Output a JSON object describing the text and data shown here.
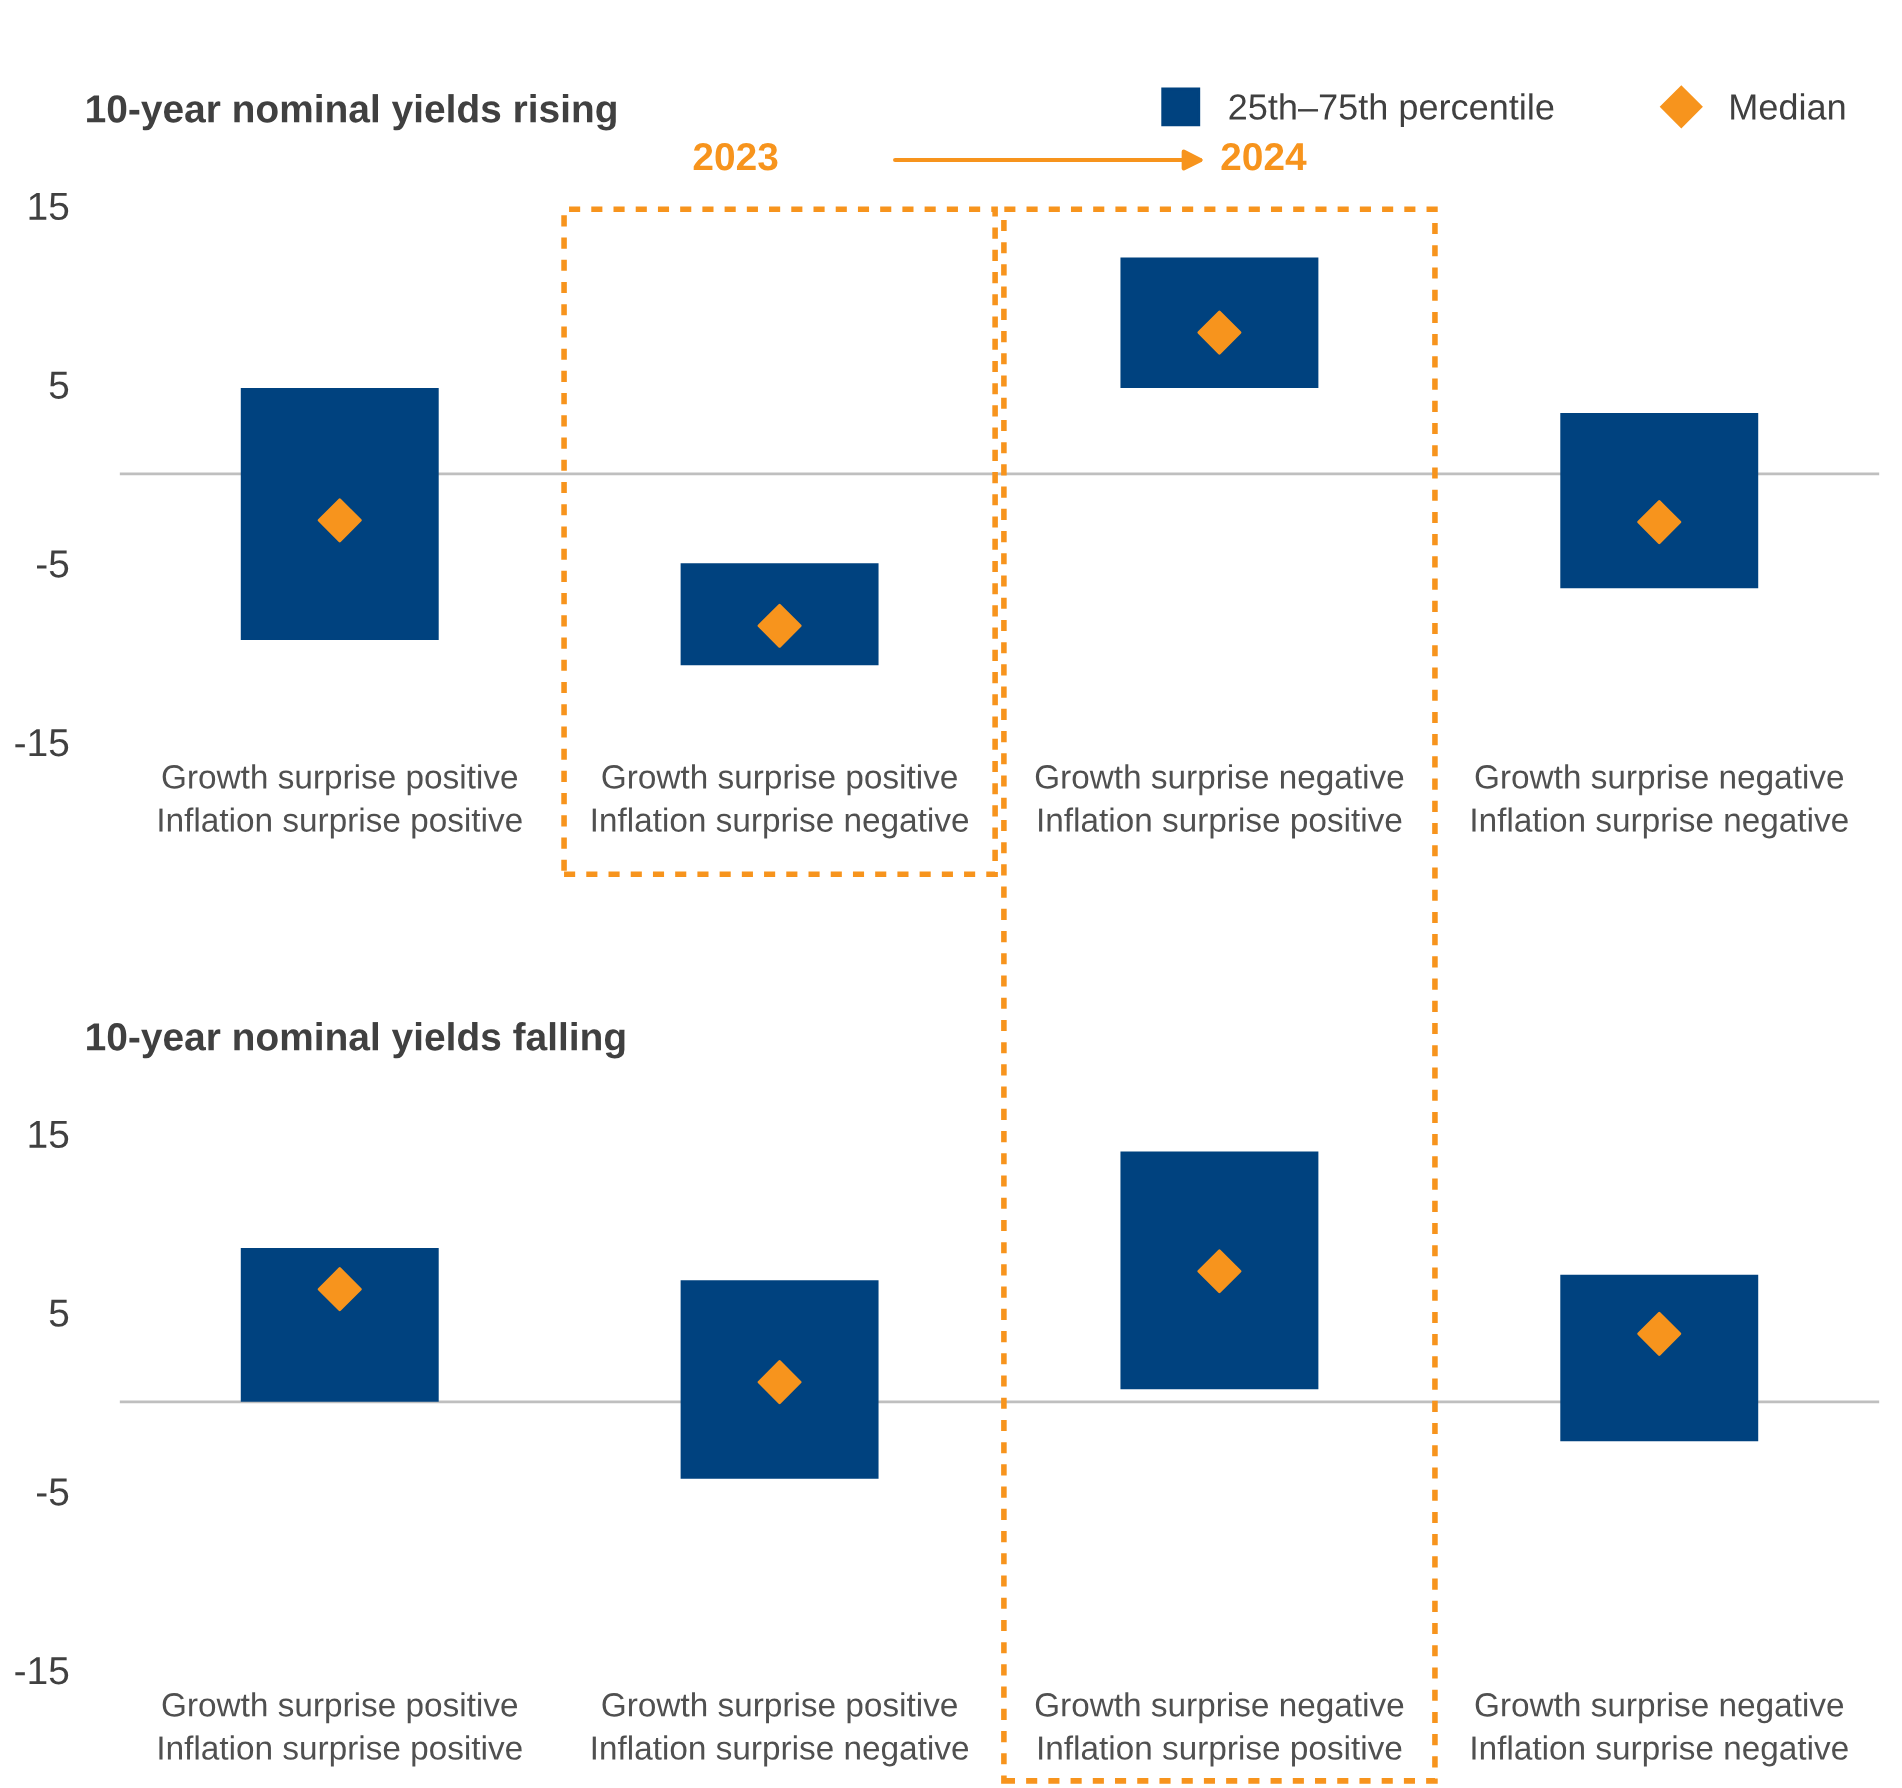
{
  "chart_data": [
    {
      "type": "bar",
      "title": "10-year nominal yields rising",
      "categories": [
        "Growth surprise positive\nInflation surprise positive",
        "Growth surprise positive\nInflation surprise negative",
        "Growth surprise negative\nInflation surprise positive",
        "Growth surprise negative\nInflation surprise negative"
      ],
      "series": [
        {
          "name": "25th–75th percentile",
          "color": "#00427f",
          "base": [
            -9.3,
            -10.7,
            4.8,
            -6.4
          ],
          "values": [
            14.1,
            5.7,
            7.3,
            9.8
          ]
        },
        {
          "name": "Median",
          "type": "scatter",
          "color": "#f7941d",
          "x": [
            "Growth surprise positive\nInflation surprise positive",
            "Growth surprise positive\nInflation surprise negative",
            "Growth surprise negative\nInflation surprise positive",
            "Growth surprise negative\nInflation surprise negative"
          ],
          "values": [
            -2.6,
            -8.5,
            7.9,
            -2.7
          ]
        }
      ],
      "marker": "diamond",
      "ylim": [
        -15,
        15
      ],
      "yticks": [
        -15,
        -5,
        5,
        15
      ],
      "grid": false,
      "legend": "top right",
      "ref_lines": [
        {
          "axis": "y",
          "value": 0,
          "color": "#bfbfbf"
        }
      ],
      "annotations": [
        "2023",
        "2024"
      ]
    },
    {
      "type": "bar",
      "title": "10-year nominal yields falling",
      "categories": [
        "Growth surprise positive\nInflation surprise positive",
        "Growth surprise positive\nInflation surprise negative",
        "Growth surprise negative\nInflation surprise positive",
        "Growth surprise negative\nInflation surprise negative"
      ],
      "series": [
        {
          "color": "#00427f",
          "base": [
            0.0,
            -4.3,
            0.7,
            -2.2
          ],
          "values": [
            8.6,
            11.1,
            13.3,
            9.3
          ]
        },
        {
          "type": "scatter",
          "color": "#f7941d",
          "x": [
            "Growth surprise positive\nInflation surprise positive",
            "Growth surprise positive\nInflation surprise negative",
            "Growth surprise negative\nInflation surprise positive",
            "Growth surprise negative\nInflation surprise negative"
          ],
          "values": [
            6.3,
            1.1,
            7.3,
            3.8
          ]
        }
      ],
      "marker": "diamond",
      "ylim": [
        -15,
        15
      ],
      "yticks": [
        -15,
        -5,
        5,
        15
      ],
      "grid": false,
      "ref_lines": [
        {
          "axis": "y",
          "value": 0,
          "color": "#bfbfbf"
        }
      ]
    }
  ]
}
